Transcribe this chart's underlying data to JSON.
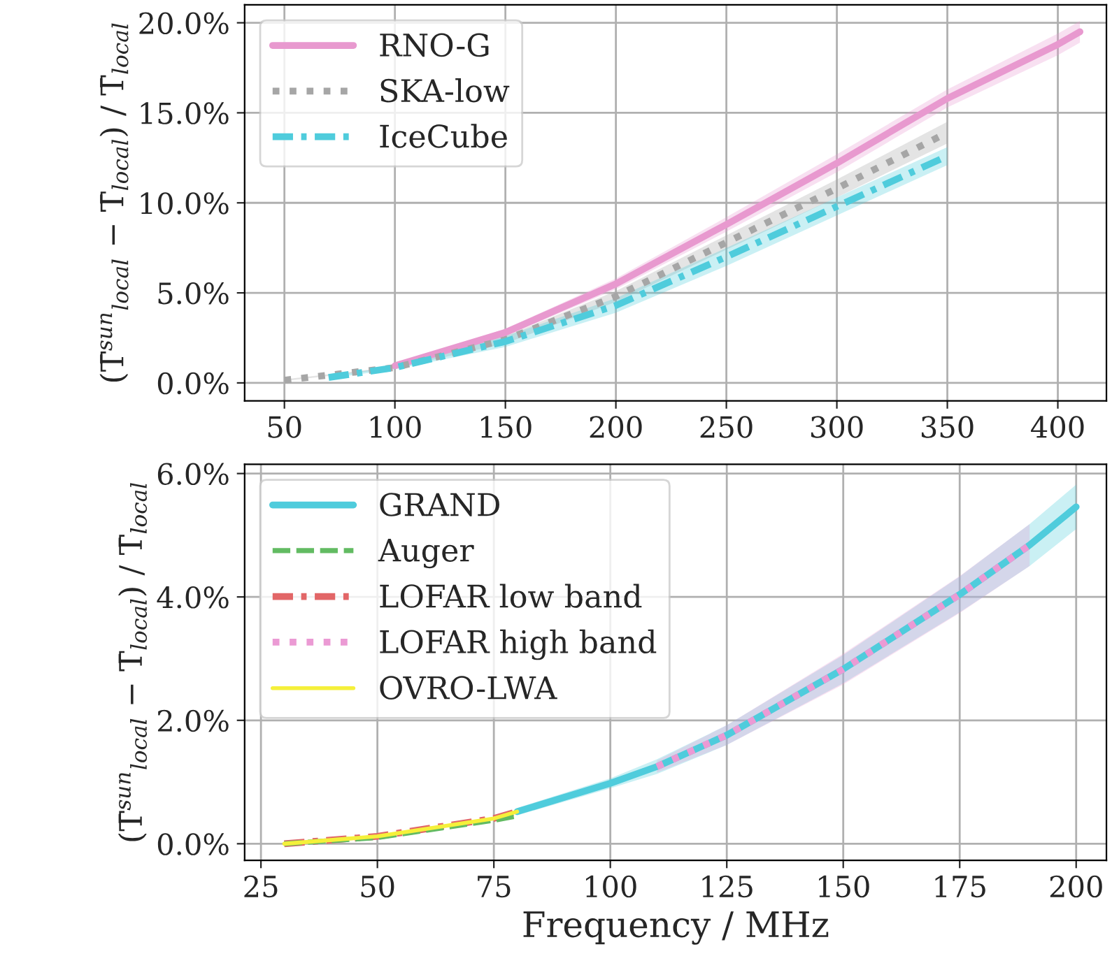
{
  "chart_data": [
    {
      "type": "line",
      "ylabel": "(T̄$^{sun}$$_{local}$ − T̄$_{local}$) / T̄$_{local}$",
      "xlim": [
        32,
        422
      ],
      "xticks": [
        50,
        100,
        150,
        200,
        250,
        300,
        350,
        400
      ],
      "ylim": [
        -1.0,
        21.0
      ],
      "yticks": [
        {
          "value": 0,
          "label": "0.0%"
        },
        {
          "value": 5,
          "label": "5.0%"
        },
        {
          "value": 10,
          "label": "10.0%"
        },
        {
          "value": 15,
          "label": "15.0%"
        },
        {
          "value": 20,
          "label": "20.0%"
        }
      ],
      "grid": true,
      "legend": "top left",
      "series": [
        {
          "name": "RNO-G",
          "color": "#e899cf",
          "line_style": "solid",
          "x": [
            100,
            150,
            200,
            250,
            300,
            350,
            400,
            410
          ],
          "values": [
            0.95,
            2.8,
            5.5,
            8.8,
            12.2,
            15.8,
            18.8,
            19.5
          ],
          "lower": [
            0.9,
            2.6,
            5.2,
            8.4,
            11.7,
            15.3,
            18.2,
            18.9
          ],
          "upper": [
            1.0,
            3.0,
            5.8,
            9.2,
            12.7,
            16.3,
            19.4,
            20.1
          ]
        },
        {
          "name": "SKA-low",
          "color": "#a6a6a6",
          "line_style": "dotted",
          "x": [
            50,
            100,
            150,
            200,
            250,
            300,
            350
          ],
          "values": [
            0.15,
            0.85,
            2.4,
            4.8,
            7.8,
            10.8,
            13.9
          ],
          "lower": [
            0.1,
            0.8,
            2.2,
            4.5,
            7.4,
            10.3,
            13.3
          ],
          "upper": [
            0.2,
            0.9,
            2.6,
            5.1,
            8.2,
            11.3,
            14.5
          ]
        },
        {
          "name": "IceCube",
          "color": "#4fccdc",
          "line_style": "dashdot",
          "x": [
            70,
            100,
            150,
            200,
            250,
            300,
            350
          ],
          "values": [
            0.3,
            0.85,
            2.3,
            4.3,
            7.0,
            9.8,
            12.6
          ],
          "lower": [
            0.25,
            0.75,
            2.0,
            3.9,
            6.5,
            9.3,
            12.1
          ],
          "upper": [
            0.35,
            0.95,
            2.6,
            4.7,
            7.5,
            10.3,
            13.1
          ]
        }
      ]
    },
    {
      "type": "line",
      "ylabel": "(T̄$^{sun}$$_{local}$ − T̄$_{local}$) / T̄$_{local}$",
      "xlabel": "Frequency / MHz",
      "xlim": [
        21.5,
        206.5
      ],
      "xticks": [
        25,
        50,
        75,
        100,
        125,
        150,
        175,
        200
      ],
      "ylim": [
        -0.27,
        6.15
      ],
      "yticks": [
        {
          "value": 0,
          "label": "0.0%"
        },
        {
          "value": 2,
          "label": "2.0%"
        },
        {
          "value": 4,
          "label": "4.0%"
        },
        {
          "value": 6,
          "label": "6.0%"
        }
      ],
      "grid": true,
      "legend": "top left",
      "series": [
        {
          "name": "GRAND",
          "color": "#4fccdc",
          "line_style": "solid",
          "x": [
            80,
            100,
            110,
            125,
            150,
            175,
            190,
            200
          ],
          "values": [
            0.52,
            0.98,
            1.25,
            1.76,
            2.83,
            4.04,
            4.84,
            5.46
          ],
          "lower": [
            0.46,
            0.9,
            1.13,
            1.6,
            2.6,
            3.75,
            4.5,
            5.1
          ],
          "upper": [
            0.58,
            1.06,
            1.37,
            1.92,
            3.06,
            4.33,
            5.18,
            5.82
          ]
        },
        {
          "name": "Auger",
          "color": "#62bb62",
          "line_style": "dashed",
          "x": [
            30,
            50,
            75,
            80
          ],
          "values": [
            0.0,
            0.1,
            0.38,
            0.45
          ]
        },
        {
          "name": "LOFAR low band",
          "color": "#e26667",
          "line_style": "dashdot",
          "x": [
            30,
            50,
            75,
            80
          ],
          "values": [
            0.0,
            0.12,
            0.41,
            0.52
          ]
        },
        {
          "name": "LOFAR high band",
          "color": "#eb9ad4",
          "line_style": "dotted",
          "x": [
            110,
            125,
            150,
            175,
            190
          ],
          "values": [
            1.25,
            1.76,
            2.83,
            4.04,
            4.84
          ],
          "lower": [
            1.15,
            1.6,
            2.58,
            3.74,
            4.5
          ],
          "upper": [
            1.35,
            1.92,
            3.08,
            4.34,
            5.18
          ]
        },
        {
          "name": "OVRO-LWA",
          "color": "#f5f03a",
          "line_style": "solid",
          "x": [
            30,
            50,
            75,
            80
          ],
          "values": [
            0.0,
            0.12,
            0.41,
            0.52
          ]
        }
      ]
    }
  ]
}
